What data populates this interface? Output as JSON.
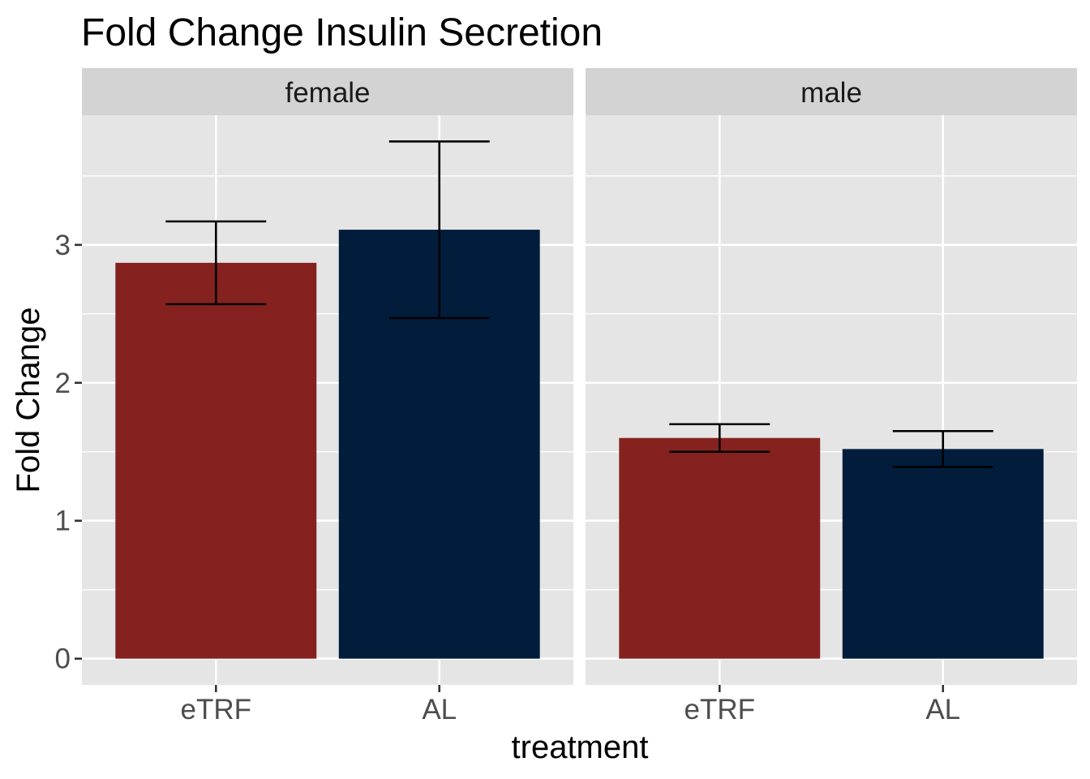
{
  "chart_data": {
    "type": "bar",
    "title": "Fold Change Insulin Secretion",
    "xlabel": "treatment",
    "ylabel": "Fold Change",
    "ylim": [
      -0.19,
      3.94
    ],
    "yticks": [
      0,
      1,
      2,
      3
    ],
    "grid": true,
    "categories": [
      "eTRF",
      "AL"
    ],
    "colors": {
      "eTRF": "#85221F",
      "AL": "#021D3C"
    },
    "panel_background": "#E5E5E5",
    "strip_background": "#D3D3D3",
    "panels": [
      {
        "label": "female",
        "values": [
          2.87,
          3.11
        ],
        "error_low": [
          2.57,
          2.47
        ],
        "error_high": [
          3.17,
          3.75
        ]
      },
      {
        "label": "male",
        "values": [
          1.6,
          1.52
        ],
        "error_low": [
          1.5,
          1.39
        ],
        "error_high": [
          1.7,
          1.65
        ]
      }
    ]
  }
}
